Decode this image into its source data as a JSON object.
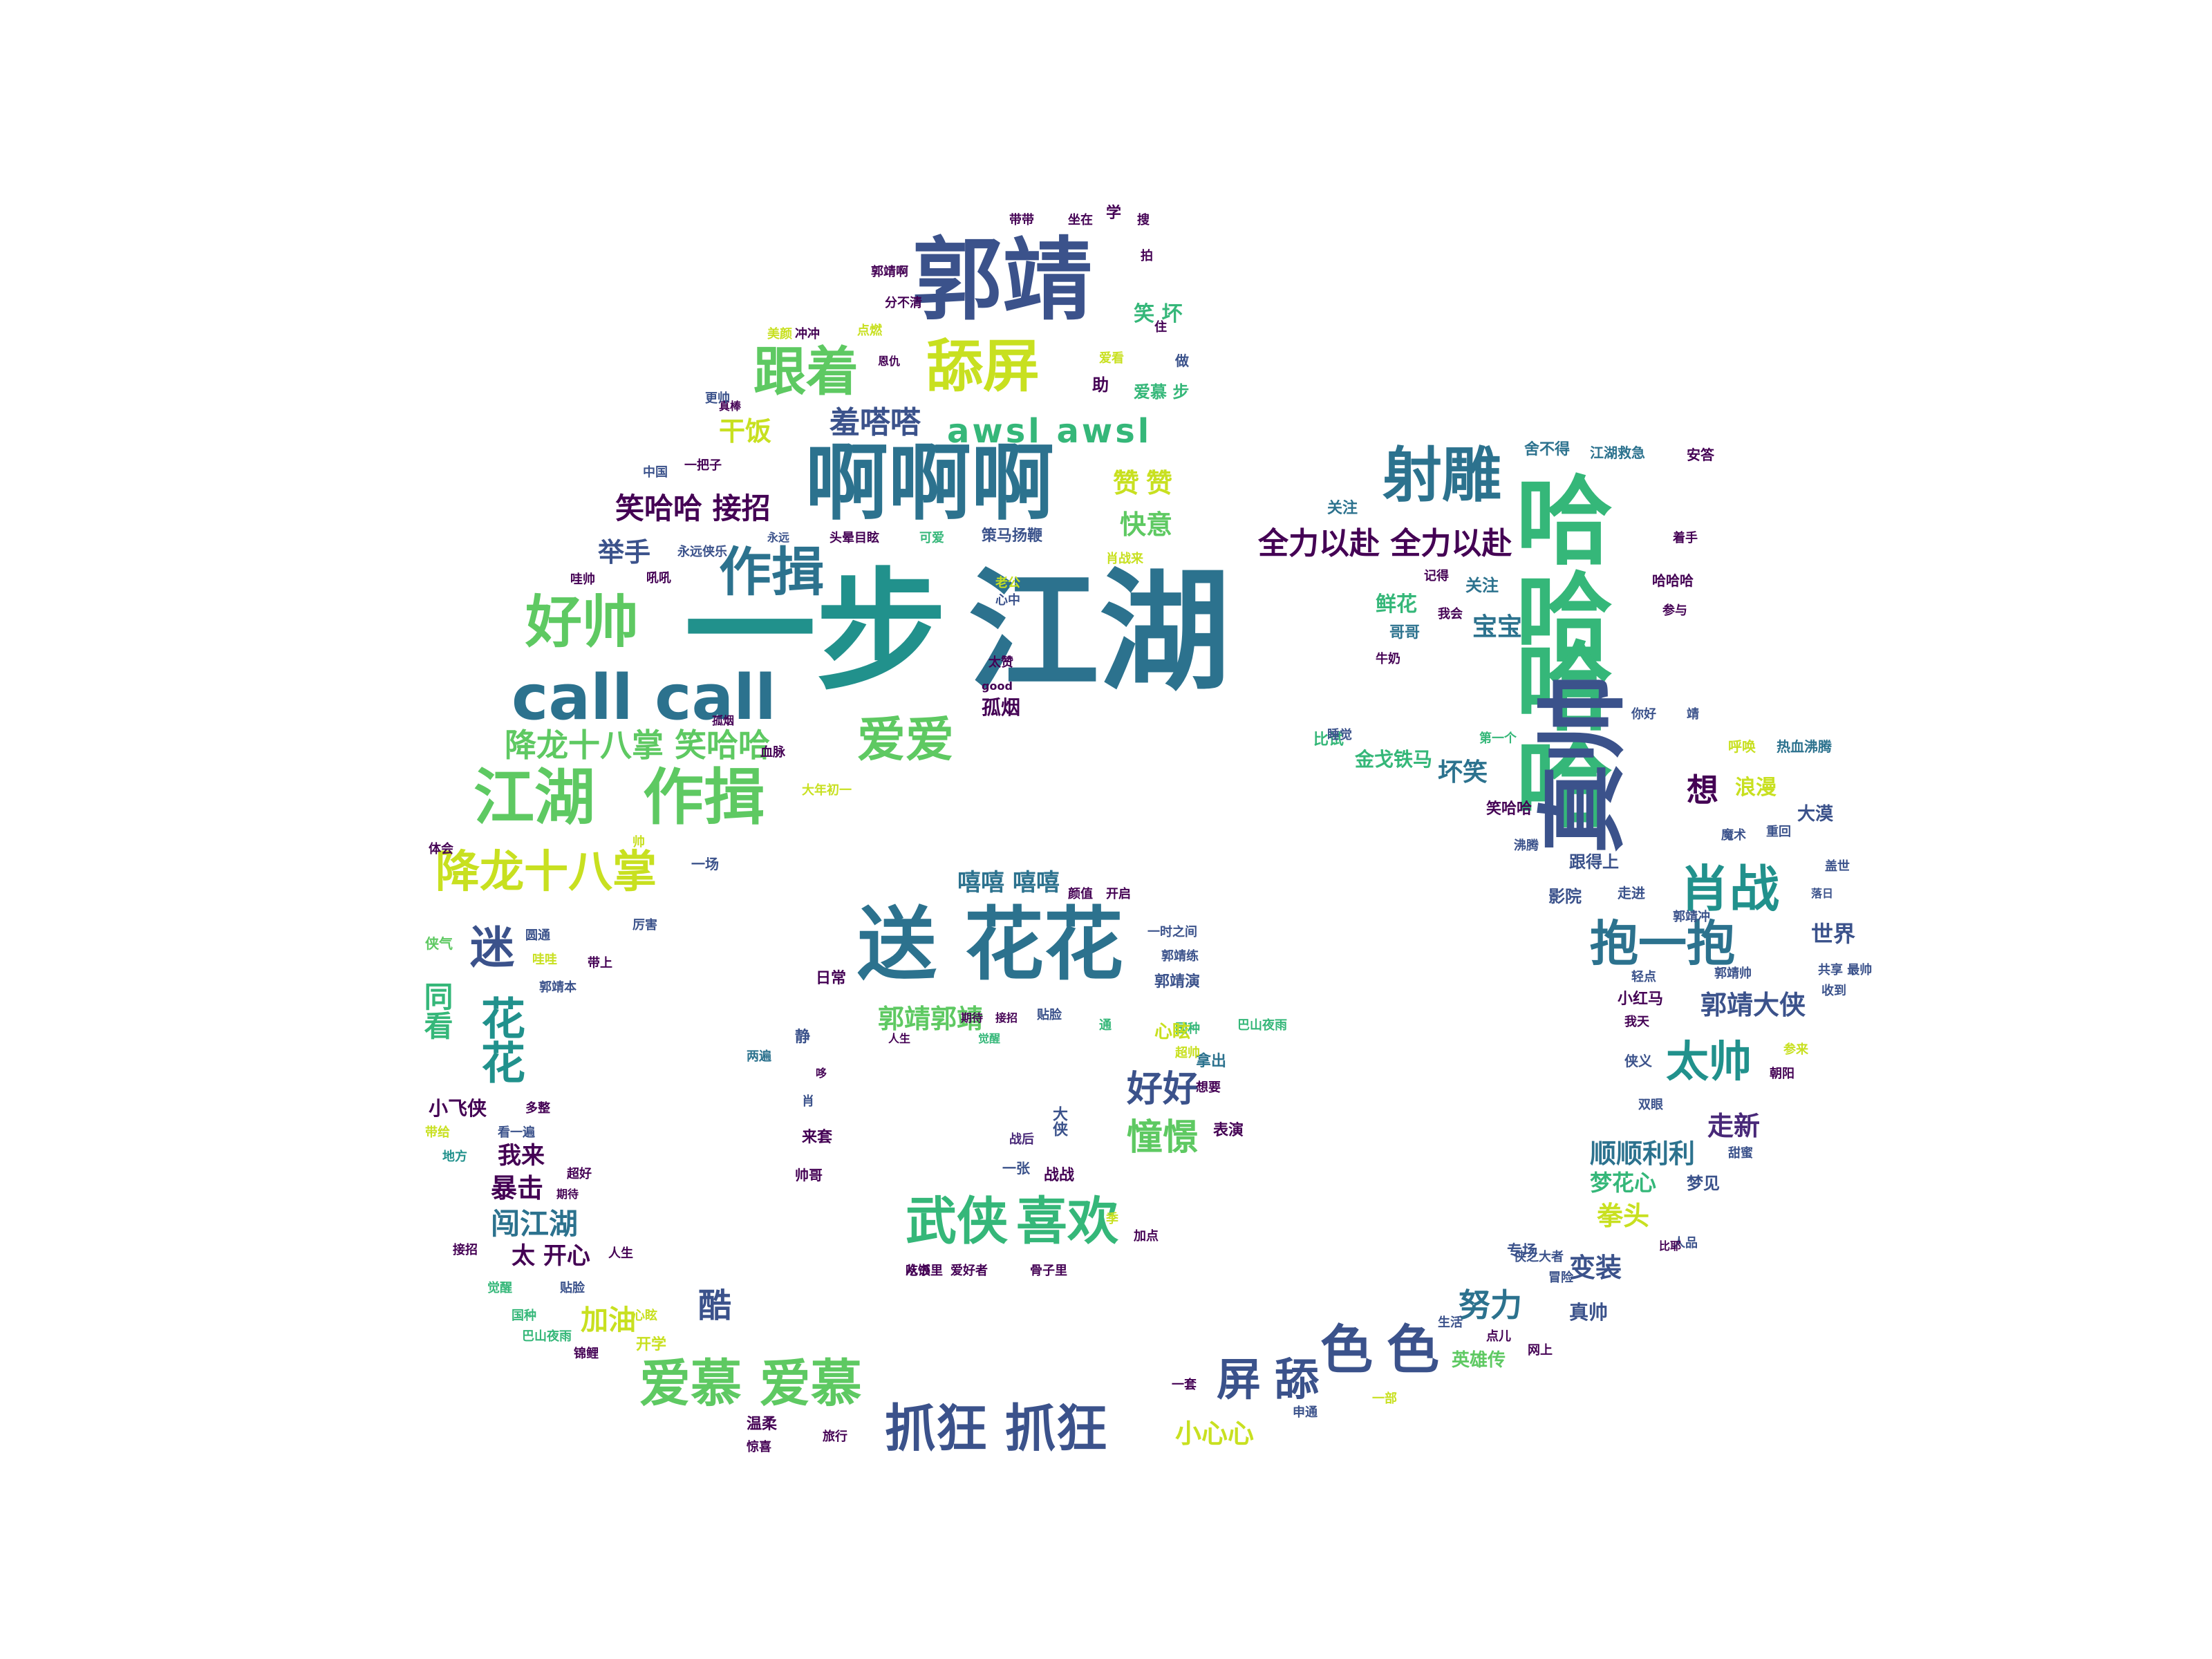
{
  "palette": {
    "c1": "#440154",
    "c2": "#3b528b",
    "c3": "#21918c",
    "c4": "#5ec962",
    "c5": "#c8e020",
    "c6": "#2c728e",
    "c7": "#35b779",
    "c8": "#482878"
  },
  "word_cloud": {
    "words": [
      {
        "text": "一步",
        "color": "#21918c"
      },
      {
        "text": "江湖",
        "color": "#2c728e"
      },
      {
        "text": "郭靖",
        "color": "#3b528b"
      },
      {
        "text": "啊啊啊",
        "color": "#2c728e"
      },
      {
        "text": "送",
        "color": "#2c728e"
      },
      {
        "text": "花花",
        "color": "#2c728e"
      },
      {
        "text": "call call",
        "color": "#2c728e"
      },
      {
        "text": "江湖",
        "color": "#5ec962"
      },
      {
        "text": "作揖",
        "color": "#5ec962"
      },
      {
        "text": "哈哈",
        "color": "#35b779"
      },
      {
        "text": "哈哈",
        "color": "#35b779"
      },
      {
        "text": "舔屏",
        "color": "#c8e020"
      },
      {
        "text": "跟着",
        "color": "#5ec962"
      },
      {
        "text": "好帅",
        "color": "#5ec962"
      },
      {
        "text": "作揖",
        "color": "#2c728e"
      },
      {
        "text": "射雕",
        "color": "#2c728e"
      },
      {
        "text": "降龙十八掌",
        "color": "#c8e020"
      },
      {
        "text": "降龙十八掌 笑哈哈",
        "color": "#5ec962"
      },
      {
        "text": "爱爱",
        "color": "#5ec962"
      },
      {
        "text": "武侠",
        "color": "#35b779"
      },
      {
        "text": "喜欢",
        "color": "#35b779"
      },
      {
        "text": "爱慕 爱慕",
        "color": "#5ec962"
      },
      {
        "text": "抓狂 抓狂",
        "color": "#3b528b"
      },
      {
        "text": "色色",
        "color": "#3b528b"
      },
      {
        "text": "屏舔",
        "color": "#3b528b"
      },
      {
        "text": "肖战",
        "color": "#21918c"
      },
      {
        "text": "抱一抱",
        "color": "#2c728e"
      },
      {
        "text": "太帅",
        "color": "#21918c"
      },
      {
        "text": "全力以赴 全力以赴",
        "color": "#440154"
      },
      {
        "text": "awsl awsl",
        "color": "#35b779"
      },
      {
        "text": "羞嗒嗒",
        "color": "#3b528b"
      },
      {
        "text": "笑哈哈 接招",
        "color": "#440154"
      },
      {
        "text": "举手",
        "color": "#3b528b"
      },
      {
        "text": "干饭",
        "color": "#c8e020"
      },
      {
        "text": "赞赞",
        "color": "#c8e020"
      },
      {
        "text": "快意",
        "color": "#5ec962"
      },
      {
        "text": "嘻嘻 嘻嘻",
        "color": "#2c728e"
      },
      {
        "text": "好好",
        "color": "#3b528b"
      },
      {
        "text": "憧憬",
        "color": "#5ec962"
      },
      {
        "text": "郭靖郭靖",
        "color": "#5ec962"
      },
      {
        "text": "郭靖大侠",
        "color": "#3b528b"
      },
      {
        "text": "迷",
        "color": "#3b528b"
      },
      {
        "text": "花花",
        "color": "#21918c"
      },
      {
        "text": "同看",
        "color": "#35b779"
      },
      {
        "text": "闯江湖",
        "color": "#2c728e"
      },
      {
        "text": "暴击",
        "color": "#440154"
      },
      {
        "text": "加油",
        "color": "#c8e020"
      },
      {
        "text": "酷",
        "color": "#3b528b"
      },
      {
        "text": "努力",
        "color": "#2c728e"
      },
      {
        "text": "变装",
        "color": "#3b528b"
      },
      {
        "text": "顺顺利利",
        "color": "#2c728e"
      },
      {
        "text": "走新",
        "color": "#482878"
      },
      {
        "text": "拳头",
        "color": "#c8e020"
      },
      {
        "text": "梦花心",
        "color": "#35b779"
      },
      {
        "text": "小心心",
        "color": "#c8e020"
      },
      {
        "text": "想",
        "color": "#440154"
      },
      {
        "text": "浪漫",
        "color": "#c8e020"
      },
      {
        "text": "世界",
        "color": "#3b528b"
      },
      {
        "text": "坏笑",
        "color": "#2c728e"
      },
      {
        "text": "鲜花",
        "color": "#35b779"
      },
      {
        "text": "宝宝",
        "color": "#2c728e"
      },
      {
        "text": "金戈铁马",
        "color": "#35b779"
      },
      {
        "text": "笑 坏",
        "color": "#35b779"
      },
      {
        "text": "爱慕 步",
        "color": "#35b779"
      },
      {
        "text": "我来",
        "color": "#440154"
      },
      {
        "text": "太 开心",
        "color": "#440154"
      },
      {
        "text": "真帅",
        "color": "#3b528b"
      },
      {
        "text": "心",
        "color": "#21918c"
      },
      {
        "text": "带带",
        "color": "#440154"
      },
      {
        "text": "坐在",
        "color": "#440154"
      },
      {
        "text": "学",
        "color": "#440154"
      },
      {
        "text": "搜",
        "color": "#440154"
      },
      {
        "text": "舍不得",
        "color": "#2c728e"
      },
      {
        "text": "江湖救急",
        "color": "#2c728e"
      },
      {
        "text": "安答",
        "color": "#440154"
      },
      {
        "text": "哈哈哈",
        "color": "#440154"
      },
      {
        "text": "大漠",
        "color": "#3b528b"
      },
      {
        "text": "影院",
        "color": "#3b528b"
      },
      {
        "text": "走进",
        "color": "#3b528b"
      },
      {
        "text": "郭靖冲",
        "color": "#3b528b"
      },
      {
        "text": "跟得上",
        "color": "#3b528b"
      },
      {
        "text": "一时之间",
        "color": "#3b528b"
      },
      {
        "text": "郭靖练",
        "color": "#3b528b"
      },
      {
        "text": "郭靖演",
        "color": "#3b528b"
      },
      {
        "text": "日常",
        "color": "#440154"
      },
      {
        "text": "开启",
        "color": "#440154"
      },
      {
        "text": "颜值",
        "color": "#440154"
      },
      {
        "text": "表演",
        "color": "#440154"
      },
      {
        "text": "拿出",
        "color": "#2c728e"
      },
      {
        "text": "想要",
        "color": "#440154"
      },
      {
        "text": "战战",
        "color": "#440154"
      },
      {
        "text": "战后",
        "color": "#482878"
      },
      {
        "text": "一张",
        "color": "#3b528b"
      },
      {
        "text": "大侠",
        "color": "#3b528b"
      },
      {
        "text": "帅哥",
        "color": "#440154"
      },
      {
        "text": "加点",
        "color": "#440154"
      },
      {
        "text": "骨子里",
        "color": "#440154"
      },
      {
        "text": "爱好者",
        "color": "#440154"
      },
      {
        "text": "吃饭",
        "color": "#440154"
      },
      {
        "text": "从书里",
        "color": "#440154"
      },
      {
        "text": "开学",
        "color": "#c8e020"
      },
      {
        "text": "锦鲤",
        "color": "#440154"
      },
      {
        "text": "温柔",
        "color": "#440154"
      },
      {
        "text": "惊喜",
        "color": "#440154"
      },
      {
        "text": "旅行",
        "color": "#440154"
      },
      {
        "text": "一套",
        "color": "#440154"
      },
      {
        "text": "申通",
        "color": "#3b528b"
      },
      {
        "text": "一部",
        "color": "#c8e020"
      },
      {
        "text": "英雄传",
        "color": "#5ec962"
      },
      {
        "text": "网上",
        "color": "#440154"
      },
      {
        "text": "专场",
        "color": "#3b528b"
      },
      {
        "text": "侠之大者",
        "color": "#3b528b"
      },
      {
        "text": "冒险",
        "color": "#3b528b"
      },
      {
        "text": "生活",
        "color": "#3b528b"
      },
      {
        "text": "点儿",
        "color": "#440154"
      },
      {
        "text": "比耶",
        "color": "#440154"
      },
      {
        "text": "人品",
        "color": "#3b528b"
      },
      {
        "text": "梦见",
        "color": "#3b528b"
      },
      {
        "text": "甜蜜",
        "color": "#3b528b"
      },
      {
        "text": "双眼",
        "color": "#3b528b"
      },
      {
        "text": "参来",
        "color": "#c8e020"
      },
      {
        "text": "朝阳",
        "color": "#440154"
      },
      {
        "text": "收到",
        "color": "#3b528b"
      },
      {
        "text": "自律",
        "color": "#3b528b"
      },
      {
        "text": "共享 最帅",
        "color": "#3b528b"
      },
      {
        "text": "郭靖帅",
        "color": "#3b528b"
      },
      {
        "text": "轻点",
        "color": "#3b528b"
      },
      {
        "text": "小红马",
        "color": "#440154"
      },
      {
        "text": "我天",
        "color": "#440154"
      },
      {
        "text": "侠义",
        "color": "#3b528b"
      },
      {
        "text": "睡觉",
        "color": "#3b528b"
      },
      {
        "text": "沸腾",
        "color": "#3b528b"
      },
      {
        "text": "你好",
        "color": "#3b528b"
      },
      {
        "text": "靖",
        "color": "#3b528b"
      },
      {
        "text": "呼唤",
        "color": "#c8e020"
      },
      {
        "text": "热血沸腾",
        "color": "#2c728e"
      },
      {
        "text": "魔术",
        "color": "#3b528b"
      },
      {
        "text": "重回",
        "color": "#3b528b"
      },
      {
        "text": "盖世",
        "color": "#3b528b"
      },
      {
        "text": "落日",
        "color": "#3b528b"
      },
      {
        "text": "记得",
        "color": "#440154"
      },
      {
        "text": "我会",
        "color": "#440154"
      },
      {
        "text": "牛奶",
        "color": "#440154"
      },
      {
        "text": "哥哥",
        "color": "#2c728e"
      },
      {
        "text": "关注",
        "color": "#2c728e"
      },
      {
        "text": "着手",
        "color": "#440154"
      },
      {
        "text": "参与",
        "color": "#440154"
      },
      {
        "text": "比试",
        "color": "#35b779"
      },
      {
        "text": "笑哈哈",
        "color": "#440154"
      },
      {
        "text": "第一个",
        "color": "#35b779"
      },
      {
        "text": "头晕目眩",
        "color": "#440154"
      },
      {
        "text": "策马扬鞭",
        "color": "#3b528b"
      },
      {
        "text": "肖战来",
        "color": "#c8e020"
      },
      {
        "text": "可爱",
        "color": "#35b779"
      },
      {
        "text": "老公",
        "color": "#c8e020"
      },
      {
        "text": "心中",
        "color": "#3b528b"
      },
      {
        "text": "太赞",
        "color": "#440154"
      },
      {
        "text": "good",
        "color": "#440154"
      },
      {
        "text": "孤烟",
        "color": "#440154"
      },
      {
        "text": "大年初一",
        "color": "#c8e020"
      },
      {
        "text": "血脉",
        "color": "#440154"
      },
      {
        "text": "中国",
        "color": "#3b528b"
      },
      {
        "text": "一把子",
        "color": "#440154"
      },
      {
        "text": "永远",
        "color": "#3b528b"
      },
      {
        "text": "永远侠乐",
        "color": "#3b528b"
      },
      {
        "text": "吼吼",
        "color": "#440154"
      },
      {
        "text": "哇帅",
        "color": "#440154"
      },
      {
        "text": "更帅",
        "color": "#3b528b"
      },
      {
        "text": "美颜",
        "color": "#c8e020"
      },
      {
        "text": "真棒",
        "color": "#440154"
      },
      {
        "text": "郭靖啊",
        "color": "#440154"
      },
      {
        "text": "分不清",
        "color": "#440154"
      },
      {
        "text": "冲冲",
        "color": "#440154"
      },
      {
        "text": "点燃",
        "color": "#c8e020"
      },
      {
        "text": "恩仇",
        "color": "#440154"
      },
      {
        "text": "爱看",
        "color": "#c8e020"
      },
      {
        "text": "做",
        "color": "#3b528b"
      },
      {
        "text": "住",
        "color": "#440154"
      },
      {
        "text": "拍",
        "color": "#440154"
      },
      {
        "text": "助",
        "color": "#440154"
      },
      {
        "text": "体会",
        "color": "#440154"
      },
      {
        "text": "帅",
        "color": "#c8e020"
      },
      {
        "text": "一场",
        "color": "#3b528b"
      },
      {
        "text": "厉害",
        "color": "#3b528b"
      },
      {
        "text": "侠气",
        "color": "#5ec962"
      },
      {
        "text": "圆通",
        "color": "#3b528b"
      },
      {
        "text": "哇哇",
        "color": "#c8e020"
      },
      {
        "text": "带上",
        "color": "#440154"
      },
      {
        "text": "郭靖本",
        "color": "#3b528b"
      },
      {
        "text": "小飞侠",
        "color": "#440154"
      },
      {
        "text": "多整",
        "color": "#440154"
      },
      {
        "text": "带给",
        "color": "#c8e020"
      },
      {
        "text": "看一遍",
        "color": "#3b528b"
      },
      {
        "text": "地方",
        "color": "#21918c"
      },
      {
        "text": "超好",
        "color": "#440154"
      },
      {
        "text": "期待",
        "color": "#440154"
      },
      {
        "text": "接招",
        "color": "#440154"
      },
      {
        "text": "人生",
        "color": "#440154"
      },
      {
        "text": "觉醒",
        "color": "#35b779"
      },
      {
        "text": "贴脸",
        "color": "#3b528b"
      },
      {
        "text": "国种",
        "color": "#35b779"
      },
      {
        "text": "心眩",
        "color": "#c8e020"
      },
      {
        "text": "巴山夜雨",
        "color": "#35b779"
      },
      {
        "text": "超帅",
        "color": "#c8e020"
      },
      {
        "text": "静",
        "color": "#3b528b"
      },
      {
        "text": "两遍",
        "color": "#2c728e"
      },
      {
        "text": "哆",
        "color": "#440154"
      },
      {
        "text": "肖",
        "color": "#3b528b"
      },
      {
        "text": "来套",
        "color": "#440154"
      },
      {
        "text": "季",
        "color": "#c8e020"
      },
      {
        "text": "就掌",
        "color": "#440154"
      },
      {
        "text": "通",
        "color": "#35b779"
      },
      {
        "text": "帅脸",
        "color": "#440154"
      },
      {
        "text": "求",
        "color": "#5ec962"
      },
      {
        "text": "真帅",
        "color": "#440154"
      },
      {
        "text": "世界",
        "color": "#3b528b"
      },
      {
        "text": "着",
        "color": "#440154"
      },
      {
        "text": "太",
        "color": "#440154"
      },
      {
        "text": "好",
        "color": "#c8e020"
      },
      {
        "text": "爱",
        "color": "#440154"
      },
      {
        "text": "部",
        "color": "#440154"
      },
      {
        "text": "点",
        "color": "#3b528b"
      },
      {
        "text": "梦",
        "color": "#440154"
      }
    ]
  }
}
